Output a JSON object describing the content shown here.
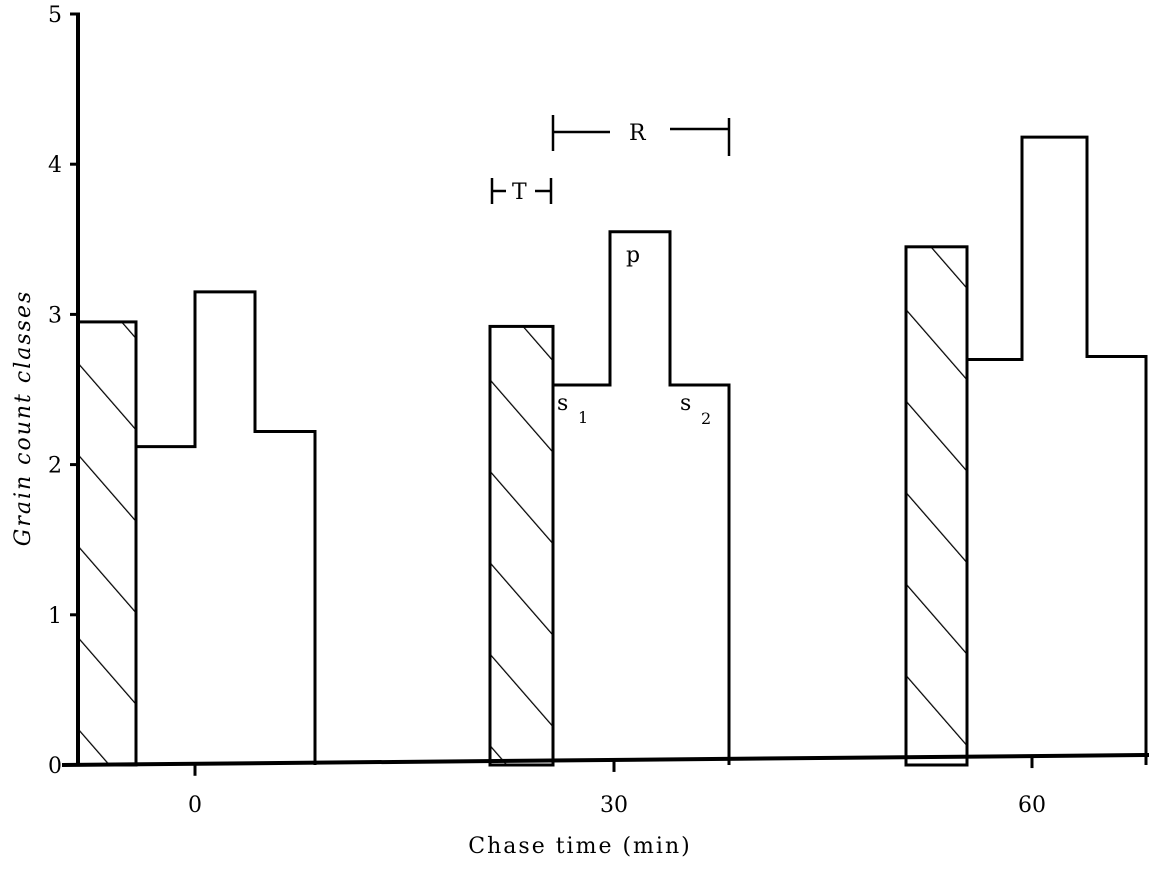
{
  "chart_data": {
    "type": "bar",
    "xlabel": "Chase time (min)",
    "ylabel": "Grain count classes",
    "ylim": [
      0,
      5
    ],
    "y_ticks": [
      "0",
      "1",
      "2",
      "3",
      "4",
      "5"
    ],
    "x_ticks": [
      "0",
      "30",
      "60"
    ],
    "groups": [
      {
        "x": "0",
        "hatched_value": 2.95,
        "step_values": [
          2.12,
          3.15,
          2.22
        ]
      },
      {
        "x": "30",
        "hatched_value": 2.92,
        "step_values": [
          2.53,
          3.55,
          2.53
        ]
      },
      {
        "x": "60",
        "hatched_value": 3.45,
        "step_values": [
          2.7,
          4.18,
          2.72
        ]
      }
    ],
    "annotations": {
      "T": "T",
      "R": "R",
      "p": "p",
      "s1": "s",
      "s1_sub": "1",
      "s2": "s",
      "s2_sub": "2"
    }
  }
}
